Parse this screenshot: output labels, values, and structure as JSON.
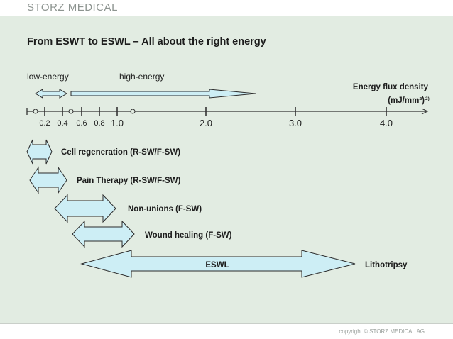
{
  "header": {
    "logo_text": "STORZ MEDICAL"
  },
  "title": "From ESWT to ESWL – All about the right energy",
  "low_energy_label": "low-energy",
  "high_energy_label": "high-energy",
  "axis": {
    "label_line1": "Energy flux density",
    "label_line2": "(mJ/mm²)",
    "footnote": "2)",
    "ticks": [
      "0.2",
      "0.4",
      "0.6",
      "0.8",
      "1.0",
      "2.0",
      "3.0",
      "4.0"
    ]
  },
  "applications": [
    {
      "label": "Cell regeneration (R-SW/F-SW)"
    },
    {
      "label": "Pain Therapy (R-SW/F-SW)"
    },
    {
      "label": "Non-unions (F-SW)"
    },
    {
      "label": "Wound healing (F-SW)"
    },
    {
      "label": "ESWL",
      "side_label": "Lithotripsy"
    }
  ],
  "colors": {
    "arrow_fill": "#cdeef5",
    "arrow_stroke": "#2a2a2a",
    "background": "#e2ece2"
  },
  "footer": {
    "copyright": "copyright © STORZ MEDICAL AG"
  }
}
